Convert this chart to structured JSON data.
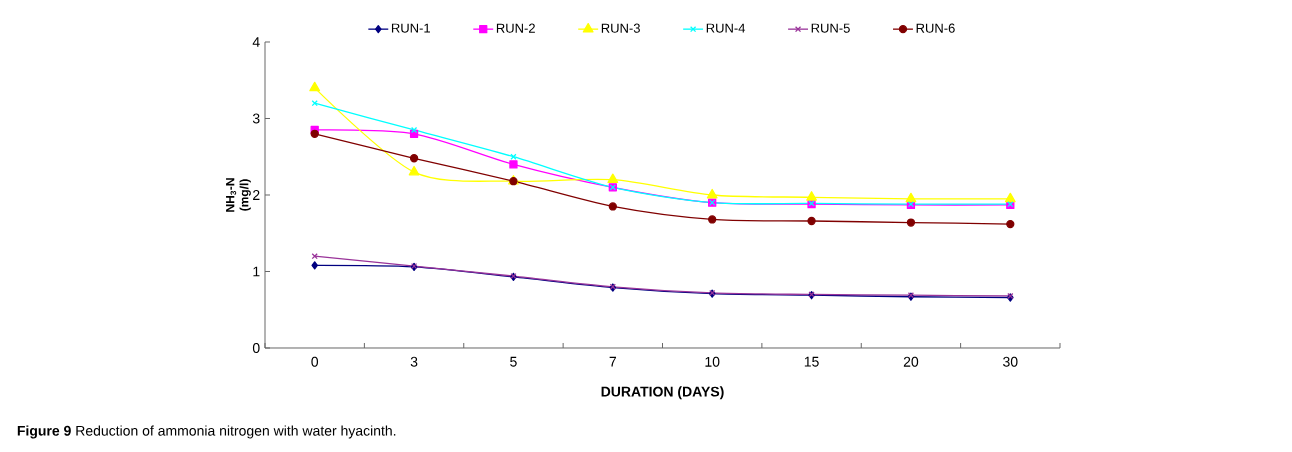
{
  "chart_data": {
    "type": "line",
    "xlabel": "DURATION (DAYS)",
    "ylabel": "NH$_{3}$-N (mg/l)",
    "categories": [
      "0",
      "3",
      "5",
      "7",
      "10",
      "15",
      "20",
      "30"
    ],
    "ylim": [
      0,
      4
    ],
    "yticks": [
      0,
      1,
      2,
      3,
      4
    ],
    "legend": "top",
    "grid": false,
    "series": [
      {
        "name": "RUN-1",
        "color": "#000080",
        "marker": "diamond",
        "values": [
          1.08,
          1.06,
          0.93,
          0.79,
          0.71,
          0.69,
          0.67,
          0.66
        ]
      },
      {
        "name": "RUN-2",
        "color": "#ff00ff",
        "marker": "square",
        "values": [
          2.85,
          2.8,
          2.4,
          2.1,
          1.9,
          1.88,
          1.87,
          1.87
        ]
      },
      {
        "name": "RUN-3",
        "color": "#ffff00",
        "marker": "triangle",
        "values": [
          3.4,
          2.3,
          2.18,
          2.2,
          2.0,
          1.97,
          1.95,
          1.95
        ]
      },
      {
        "name": "RUN-4",
        "color": "#00ffff",
        "marker": "cross",
        "values": [
          3.2,
          2.85,
          2.5,
          2.1,
          1.9,
          1.89,
          1.88,
          1.88
        ]
      },
      {
        "name": "RUN-5",
        "color": "#993399",
        "marker": "cross",
        "values": [
          1.2,
          1.07,
          0.94,
          0.8,
          0.72,
          0.7,
          0.69,
          0.68
        ]
      },
      {
        "name": "RUN-6",
        "color": "#800000",
        "marker": "circle",
        "values": [
          2.8,
          2.48,
          2.18,
          1.85,
          1.68,
          1.66,
          1.64,
          1.62
        ]
      }
    ],
    "annotations": [
      "**Figure 9** Reduction of ammonia nitrogen with water hyacinth."
    ]
  }
}
